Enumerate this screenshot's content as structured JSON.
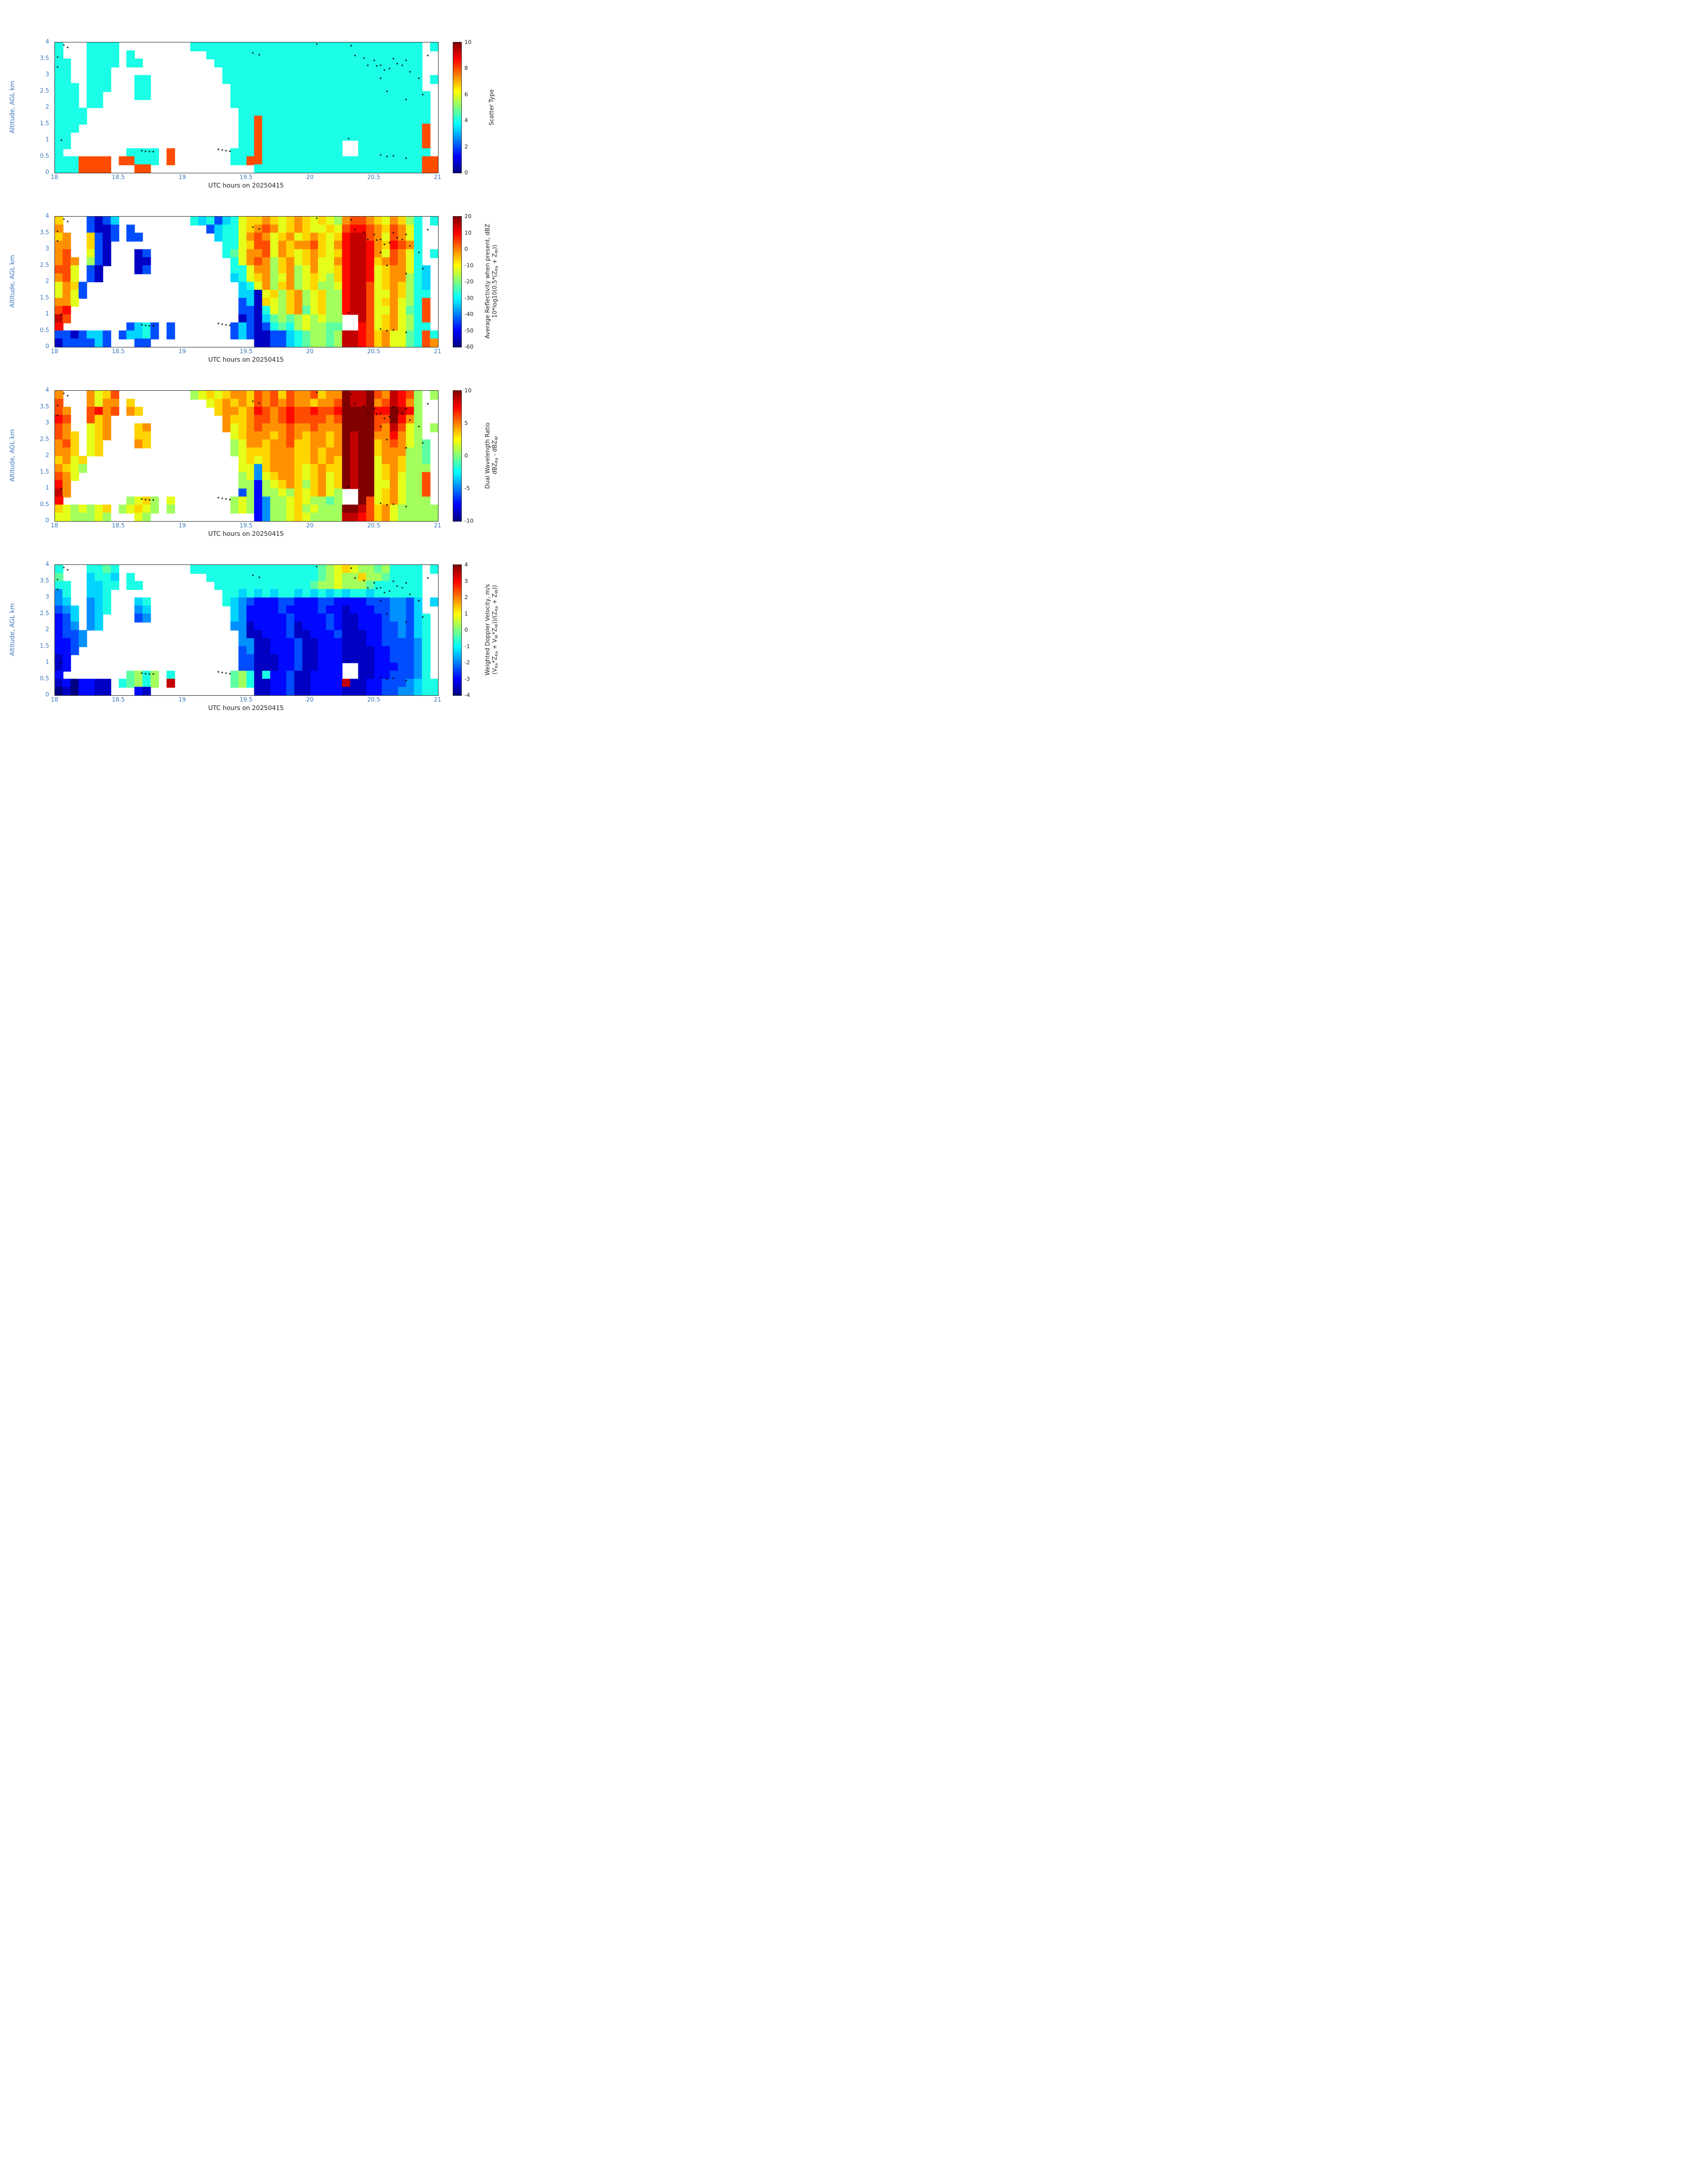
{
  "figure": {
    "xlabel": "UTC hours on 20250415",
    "ylabel": "Altitude, AGL km",
    "x_ticks": [
      18,
      18.5,
      19,
      19.5,
      20,
      20.5,
      21
    ],
    "y_ticks": [
      0,
      0.5,
      1,
      1.5,
      2,
      2.5,
      3,
      3.5,
      4
    ],
    "xlim": [
      18,
      21
    ],
    "ylim": [
      0,
      4
    ],
    "axis_tick_color": "#3b77bc",
    "colormap": "jet",
    "grid_cols": 48,
    "grid_rows": 16,
    "time_start_hours": 18,
    "time_step_hours": 0.0625,
    "alt_top_km": 4,
    "alt_step_km": 0.25,
    "no_data_char": ".",
    "encoding": "each grid char is hex level 0-15; value = vmin + level/15*(vmax-vmin); '.' = no data",
    "markers_note": "black dot overlay points [utc_hours, altitude_km], drawn on all four panels",
    "markers": [
      [
        18.07,
        3.92
      ],
      [
        18.1,
        3.85
      ],
      [
        18.02,
        3.55
      ],
      [
        18.02,
        3.25
      ],
      [
        18.05,
        1.0
      ],
      [
        18.68,
        0.68
      ],
      [
        18.71,
        0.66
      ],
      [
        18.74,
        0.65
      ],
      [
        18.77,
        0.65
      ],
      [
        19.28,
        0.72
      ],
      [
        19.31,
        0.7
      ],
      [
        19.34,
        0.68
      ],
      [
        19.37,
        0.66
      ],
      [
        19.55,
        3.68
      ],
      [
        19.6,
        3.62
      ],
      [
        20.05,
        3.95
      ],
      [
        20.32,
        3.9
      ],
      [
        20.35,
        3.6
      ],
      [
        20.42,
        3.52
      ],
      [
        20.45,
        3.3
      ],
      [
        20.5,
        3.45
      ],
      [
        20.52,
        3.28
      ],
      [
        20.55,
        3.3
      ],
      [
        20.58,
        3.15
      ],
      [
        20.62,
        3.2
      ],
      [
        20.65,
        3.5
      ],
      [
        20.68,
        3.35
      ],
      [
        20.72,
        3.3
      ],
      [
        20.75,
        3.45
      ],
      [
        20.78,
        3.1
      ],
      [
        20.55,
        2.9
      ],
      [
        20.6,
        2.5
      ],
      [
        20.75,
        2.25
      ],
      [
        20.85,
        2.9
      ],
      [
        20.88,
        2.4
      ],
      [
        20.92,
        3.6
      ],
      [
        20.55,
        0.55
      ],
      [
        20.6,
        0.5
      ],
      [
        20.65,
        0.52
      ],
      [
        20.75,
        0.45
      ],
      [
        20.3,
        1.05
      ]
    ]
  },
  "chart_data": [
    {
      "type": "heatmap",
      "colorbar_label": "Scatter Type",
      "colorbar_formula": "",
      "vmin": 0,
      "vmax": 10,
      "colorbar_ticks": [
        0,
        2,
        4,
        6,
        8,
        10
      ],
      "grid": [
        "6...6666.........66666666666666666666666666666.6",
        "6...6666.6.........666666666666666666666666666..",
        "66..6666.66.........66666666666666666666666666..",
        "66..666..............6666666666666666666666666..",
        "66..666...66.........6666666666666666666666666.6",
        "666.666...66..........666666666666666666666666..",
        "666.66....66..........6666666666666666666666666.",
        "666.66................6666666666666666666666666.",
        "6666...................666666666666666666666666.",
        "6666...................66c666666666666666666666.",
        "666....................66c66666666666666666666c.",
        "66.....................66c66666666666666666666c.",
        "66.....................66c6666666666..66666666c.",
        "6........6666.c.......666c6666666666..666666666.",
        "666cccc.cc666.c.......66cc66666666666666666666cc",
        "666cccc...cc.............666666666666666666666cc"
      ]
    },
    {
      "type": "heatmap",
      "colorbar_label": "Average Reflectivity when present, dBZ",
      "colorbar_formula": "10*log10(0.5*(Z_Ka + Z_W))",
      "vmin": -60,
      "vmax": 20,
      "colorbar_ticks": [
        -60,
        -50,
        -40,
        -30,
        -20,
        -10,
        0,
        10,
        20
      ],
      "grid": [
        "a...3135.........6563569aaba9aba9a98bccba9ba86.6",
        "b...3113.3.........35669abcb9aba99a9cddcbacb96..",
        "ab..a313.33.........5669bcb9ab9aba9adeecb9cb96..",
        "bb..a31..............669acc9babbca9bdeedbadcb6..",
        "bc..931...13.........679bbc9ba9aba9adeedb9cb96.6",
        "bcb.831...11..........69bcb8ab9ab99bdeedabcb96..",
        "cc9.31....13..........669bb8ab89b99adeed9abb965.",
        "bc9.31................569ab89b89a98adeed9abb865.",
        "9ba3...................569b8ab89a889deec9aba865.",
        "9b93...................5519a8ab89a88deec99ba866.",
        "bb9....................351a98ab89a88deec9ab986c.",
        "cd.....................331698ab79a88deec99b976c.",
        "ec.....................1315787898988..ec9ab986c.",
        "d........3563.3.......35313676898877..dc9ab9866.",
        "3313553.35563.3.......35311335678878eedcab9976c6",
        "1333353...33.............11335678878eedcab9976cb"
      ]
    },
    {
      "type": "heatmap",
      "colorbar_label": "Dual Wavelength Ratio",
      "colorbar_formula": "dBZ_Ka - dBZ_W",
      "vmin": -10,
      "vmax": 10,
      "colorbar_ticks": [
        -10,
        -5,
        0,
        5,
        10
      ],
      "grid": [
        "b...b9ac.........89a9abbacbcacbbcabbfeefcbedc8.8",
        "c...b9bb.a.........9ababacbcbcbbabbcfeefbcedb8..",
        "cb..cdbc.ba.........abbabdcbcdccdccdffffddfed8..",
        "dc..cab..............baabccbcdccccbcffffccfdb8..",
        "cb..9ab...ab.........b9abcbbbcbbcbbbffffcbec98.8",
        "cba.9ab...aa..........9abbbabcbabbabfeffbbdb98..",
        "bca.9a....ba..........89bbabbcaabbabfeffabcb987.",
        "bba.9a................89aaabbbaababbfeffabbb887.",
        "ab9a...................9a9abbbaababafeff9bba887.",
        "ba98...................994abbba9abaafeff9aba888.",
        "cb9....................8949abba9ab9afeff9ab988c.",
        "db.....................88289aba8ab9afeff99b988c.",
        "eb.....................3828898a9ab98..ff9ab988c.",
        "d........89a8.9.......89824889a98878..fc9ab9888.",
        "a98989a.89a98.8.......89824889a89888ffecab988888",
        "9988898...98.............24889a98888eedcab988888"
      ]
    },
    {
      "type": "heatmap",
      "colorbar_label": "Weighted Doppler Velocity, m/s",
      "colorbar_formula": "(V_Ka*Z_Ka + V_W*Z_W))/(Z_Ka + Z_W))",
      "vmin": -4,
      "vmax": 4,
      "colorbar_ticks": [
        -4,
        -3,
        -2,
        -1,
        0,
        1,
        2,
        3,
        4
      ],
      "grid": [
        "6...6676.........6666666666666666789a988786666.6",
        "7...5665.6.........6666666666666678988a8876666..",
        "66..5566.66.........66666666666678898887666666..",
        "46..556..............6656565665656565665666666..",
        "45..456...56.........6543222332223322223334435.5",
        "345.456...45..........542222322223221222334435..",
        "235.45....34..........5422222322223211222344356.",
        "234.45................4412222312223211222334356.",
        "2334...................411222311222311122334356.",
        "2234...................441122231122211122333346.",
        "223....................341122231122211112233346.",
        "12.....................331112231122211112233346.",
        "12.....................3311122311222..112223346.",
        "2........7868.6.......78616223112222..112233346.",
        "1202211.67868.e.......78611223112222e11223334566",
        "0102211...21.............11223112222111223344566"
      ]
    }
  ]
}
